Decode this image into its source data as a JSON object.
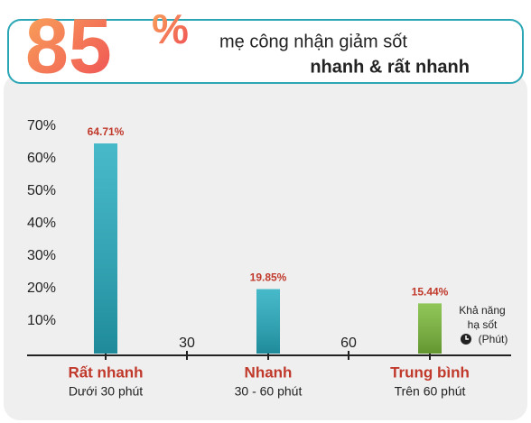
{
  "headline": {
    "number": "85",
    "unit": "%",
    "line1": "mẹ công nhận giảm sốt",
    "line2": "nhanh & rất nhanh"
  },
  "chart_data": {
    "type": "bar",
    "categories": [
      "Rất nhanh",
      "Nhanh",
      "Trung bình"
    ],
    "subcategories": [
      "Dưới 30 phút",
      "30 - 60 phút",
      "Trên 60 phút"
    ],
    "values": [
      64.71,
      19.85,
      15.44
    ],
    "value_labels": [
      "64.71%",
      "19.85%",
      "15.44%"
    ],
    "colors": [
      "#26adc0",
      "#26adc0",
      "#7cbb3b"
    ],
    "ylim": [
      0,
      70
    ],
    "yticks": [
      {
        "value": 10,
        "label": "10%"
      },
      {
        "value": 20,
        "label": "20%"
      },
      {
        "value": 30,
        "label": "30%"
      },
      {
        "value": 40,
        "label": "40%"
      },
      {
        "value": 50,
        "label": "50%"
      },
      {
        "value": 60,
        "label": "60%"
      },
      {
        "value": 70,
        "label": "70%"
      }
    ],
    "boundary_labels": [
      "30",
      "60"
    ],
    "x_label": [
      "Khả năng",
      "hạ sốt",
      "(Phút)"
    ]
  }
}
